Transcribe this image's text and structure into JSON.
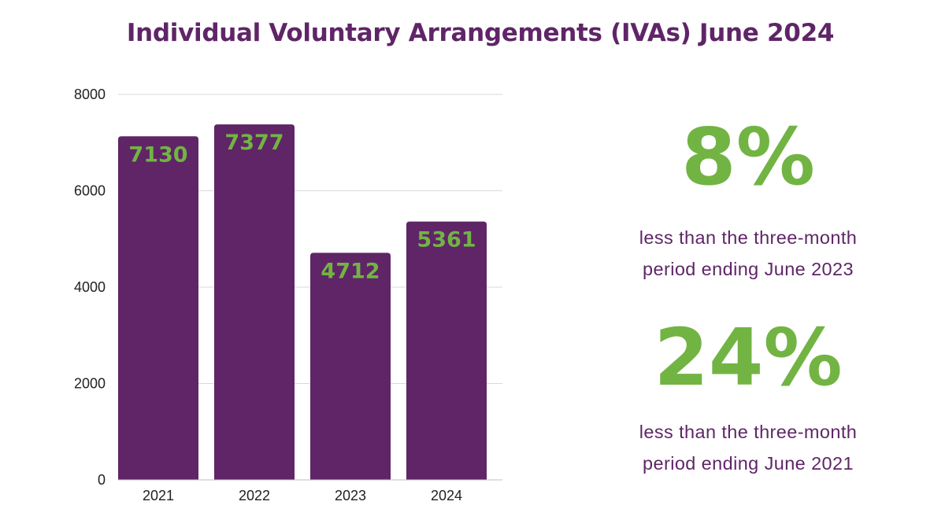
{
  "title": "Individual Voluntary Arrangements (IVAs) June 2024",
  "chart_data": {
    "type": "bar",
    "title": "",
    "xlabel": "",
    "ylabel": "",
    "categories": [
      "2021",
      "2022",
      "2023",
      "2024"
    ],
    "values": [
      7130,
      7377,
      4712,
      5361
    ],
    "data_labels": [
      "7130",
      "7377",
      "4712",
      "5361"
    ],
    "ylim": [
      0,
      8000
    ],
    "yticks": [
      0,
      2000,
      4000,
      6000,
      8000
    ],
    "ytick_labels": [
      "0",
      "2000",
      "4000",
      "6000",
      "8000"
    ],
    "grid": true,
    "legend": "none",
    "bar_color": "#5f2567",
    "label_color": "#72b443",
    "grid_color": "#d9d9d9"
  },
  "stats": [
    {
      "value": "8%",
      "line1": "less than the three-month",
      "line2": "period ending June 2023"
    },
    {
      "value": "24%",
      "line1": "less than the three-month",
      "line2": "period ending June 2021"
    }
  ],
  "colors": {
    "purple": "#5f2567",
    "green": "#72b443"
  }
}
